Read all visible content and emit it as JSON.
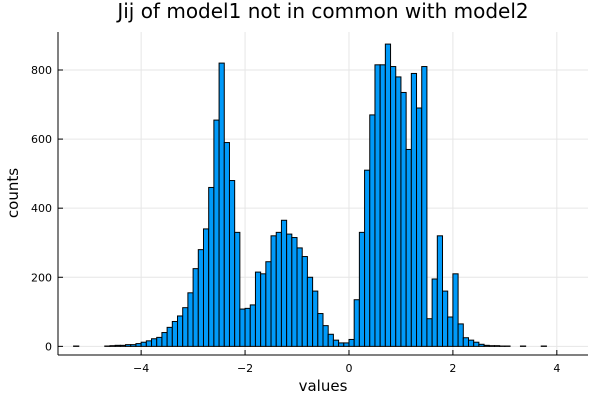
{
  "chart_data": {
    "type": "bar",
    "title": "Jij of model1 not in common with model2",
    "xlabel": "values",
    "ylabel": "counts",
    "xlim": [
      -5.6,
      4.6
    ],
    "ylim": [
      -25,
      910
    ],
    "xticks": [
      -4,
      -2,
      0,
      2,
      4
    ],
    "xtick_labels": [
      "−4",
      "−2",
      "0",
      "2",
      "4"
    ],
    "yticks": [
      0,
      200,
      400,
      600,
      800
    ],
    "ytick_labels": [
      "0",
      "200",
      "400",
      "600",
      "800"
    ],
    "grid": true,
    "legend": "none",
    "bar_color": "#009af9",
    "bin_width": 0.1,
    "bins_start": -5.3,
    "counts": [
      1,
      0,
      0,
      0,
      0,
      0,
      1,
      2,
      3,
      3,
      5,
      5,
      8,
      12,
      16,
      22,
      26,
      40,
      55,
      72,
      88,
      112,
      155,
      225,
      280,
      340,
      460,
      655,
      820,
      590,
      480,
      330,
      108,
      110,
      120,
      215,
      210,
      245,
      320,
      330,
      365,
      325,
      315,
      285,
      260,
      200,
      160,
      95,
      60,
      35,
      18,
      10,
      10,
      20,
      135,
      330,
      510,
      670,
      815,
      815,
      875,
      810,
      780,
      735,
      570,
      790,
      690,
      810,
      80,
      195,
      320,
      160,
      85,
      210,
      65,
      25,
      18,
      12,
      6,
      3,
      2,
      2,
      1,
      1,
      0,
      0,
      1,
      0,
      0,
      0,
      1,
      0,
      0
    ]
  }
}
